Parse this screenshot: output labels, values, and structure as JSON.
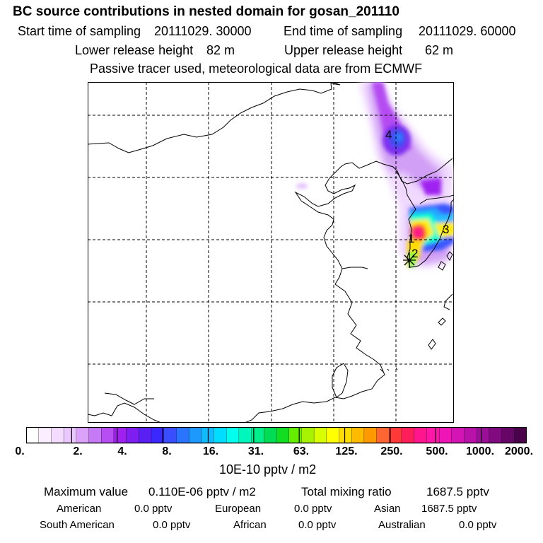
{
  "header": {
    "title": "BC  source contributions in nested domain for gosan_201110",
    "start_label": "Start time of sampling",
    "start_value": "20111029. 30000",
    "end_label": "End time of sampling",
    "end_value": "20111029. 60000",
    "lower_label": "Lower release height",
    "lower_value": "82 m",
    "upper_label": "Upper release height",
    "upper_value": "62 m",
    "note": "Passive tracer used, meteorological data are from ECMWF"
  },
  "map": {
    "markers": [
      "1",
      "2",
      "3",
      "4"
    ],
    "colors": {
      "lavender": "#f0d8ff",
      "violet": "#b040ff",
      "purple": "#8a2be2",
      "blue": "#3a5aff",
      "lightblue": "#20b0ff",
      "cyan": "#00ffee",
      "green": "#30ff80",
      "yellow": "#ffee00",
      "orange": "#ffaa00",
      "red": "#ff3030",
      "magenta": "#ff1890"
    }
  },
  "colorbar": {
    "ticks": [
      "0.",
      "2.",
      "4.",
      "8.",
      "16.",
      "31.",
      "63.",
      "125.",
      "250.",
      "500.",
      "1000.",
      "2000."
    ],
    "colors": [
      "#ffffff",
      "#fbeeff",
      "#f4dcff",
      "#ebc8ff",
      "#dba2f9",
      "#c77af6",
      "#b64ef4",
      "#a020f0",
      "#7e1ef0",
      "#5a1ff2",
      "#3a28ff",
      "#3a4dff",
      "#2a74ff",
      "#1c98ff",
      "#11bbff",
      "#00ddff",
      "#00ffee",
      "#00f7bb",
      "#00ee8c",
      "#00dd55",
      "#11dd22",
      "#66ee00",
      "#a6f200",
      "#d8ff00",
      "#ffff00",
      "#ffdd00",
      "#ffbb00",
      "#ff9900",
      "#ff6633",
      "#ff3838",
      "#ff1e5a",
      "#ff168e",
      "#ff18a8",
      "#ee16b6",
      "#d414b4",
      "#b812aa",
      "#9a0e98",
      "#800a80",
      "#660666",
      "#4a024a"
    ],
    "unit": "10E-10 pptv / m2"
  },
  "stats": {
    "max_label": "Maximum value",
    "max_value": "0.110E-06 pptv / m2",
    "total_label": "Total mixing ratio",
    "total_value": "1687.5 pptv",
    "regions": [
      {
        "name": "American",
        "value": "0.0 pptv"
      },
      {
        "name": "European",
        "value": "0.0 pptv"
      },
      {
        "name": "Asian",
        "value": "1687.5 pptv"
      },
      {
        "name": "South American",
        "value": "0.0 pptv"
      },
      {
        "name": "African",
        "value": "0.0 pptv"
      },
      {
        "name": "Australian",
        "value": "0.0 pptv"
      }
    ]
  }
}
